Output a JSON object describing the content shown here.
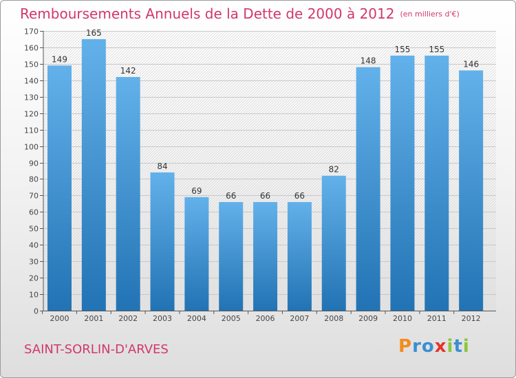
{
  "header": {
    "title": "Remboursements Annuels de la Dette de 2000 à 2012",
    "unit": "(en milliers d'€)"
  },
  "footer": {
    "place": "SAINT-SORLIN-D'ARVES",
    "logo": "Proxiti"
  },
  "colors": {
    "title": "#d2376a",
    "bar_top": "#63b1ea",
    "bar_bottom": "#2273b4",
    "logo_letters": [
      "#f28c1e",
      "#3a8fd1",
      "#3a8fd1",
      "#e6332a",
      "#8bc53f",
      "#3a8fd1",
      "#8bc53f"
    ]
  },
  "chart_data": {
    "type": "bar",
    "categories": [
      "2000",
      "2001",
      "2002",
      "2003",
      "2004",
      "2005",
      "2006",
      "2007",
      "2008",
      "2009",
      "2010",
      "2011",
      "2012"
    ],
    "values": [
      149,
      165,
      142,
      84,
      69,
      66,
      66,
      66,
      82,
      148,
      155,
      155,
      146
    ],
    "ylim": [
      0,
      170
    ],
    "ytick_step": 10,
    "grid": true,
    "data_labels": true
  }
}
